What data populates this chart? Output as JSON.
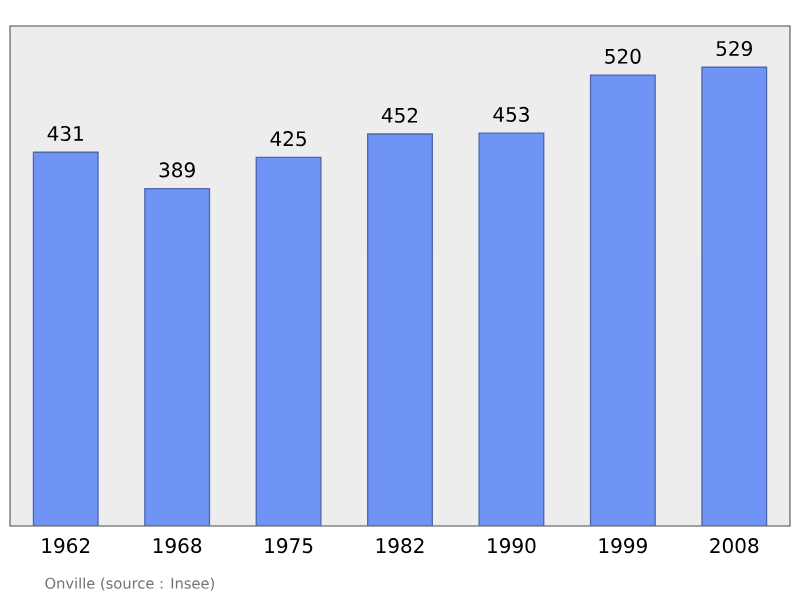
{
  "chart_data": {
    "type": "bar",
    "categories": [
      "1962",
      "1968",
      "1975",
      "1982",
      "1990",
      "1999",
      "2008"
    ],
    "values": [
      431,
      389,
      425,
      452,
      453,
      520,
      529
    ],
    "color": "#7094f5",
    "data_labels": true,
    "annotations": [
      "Onville    (source : Insee)"
    ]
  }
}
